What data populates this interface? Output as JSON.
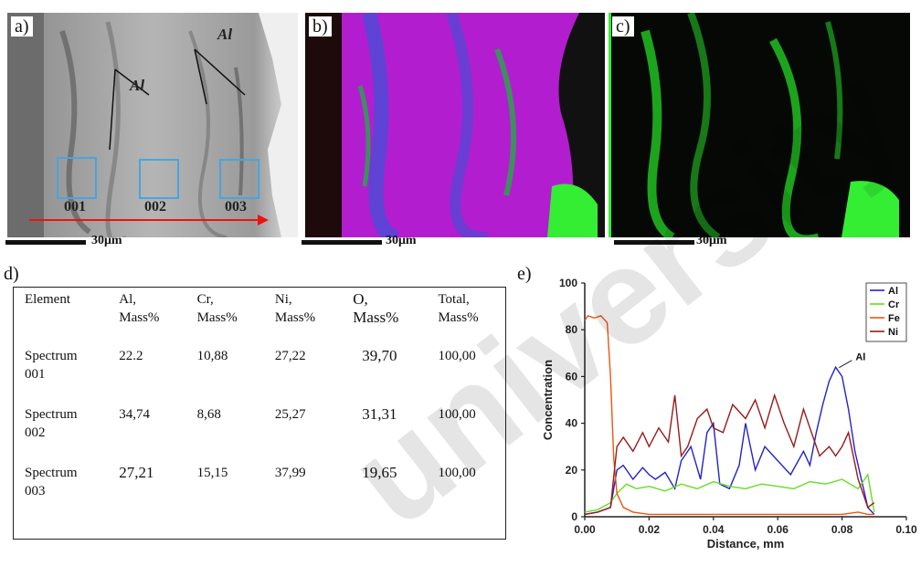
{
  "panels": {
    "a": {
      "label": "a)",
      "al_label_1": "Al",
      "al_label_2": "Al",
      "regions": [
        "001",
        "002",
        "003"
      ],
      "scale": "30μm"
    },
    "b": {
      "label": "b)",
      "scale": "30μm"
    },
    "c": {
      "label": "c)",
      "scale": "30μm"
    },
    "d": {
      "label": "d)"
    },
    "e": {
      "label": "e)"
    }
  },
  "table": {
    "headers": [
      [
        "Element"
      ],
      [
        "Al,",
        "Mass%"
      ],
      [
        "Cr,",
        "Mass%"
      ],
      [
        "Ni,",
        "Mass%"
      ],
      [
        "O,",
        "Mass%"
      ],
      [
        "Total,",
        "Mass%"
      ]
    ],
    "rows": [
      {
        "name": [
          "Spectrum",
          "001"
        ],
        "cells": [
          "22.2",
          "10,88",
          "27,22",
          "39,70",
          "100,00"
        ]
      },
      {
        "name": [
          "Spectrum",
          "002"
        ],
        "cells": [
          "34,74",
          "8,68",
          "25,27",
          "31,31",
          "100,00"
        ]
      },
      {
        "name": [
          "Spectrum",
          "003"
        ],
        "cells": [
          "27,21",
          "15,15",
          "37,99",
          "19,65",
          "100,00"
        ]
      }
    ]
  },
  "watermark": "university",
  "colors": {
    "Al": "#2222cc",
    "Cr": "#66dd22",
    "Fe": "#ee5511",
    "Ni": "#991a1a",
    "scan_arrow": "#ee1111",
    "region_box": "#4aa3df"
  },
  "chart_data": {
    "type": "line",
    "xlabel": "Distance, mm",
    "ylabel": "Concentration",
    "xlim": [
      0,
      0.1
    ],
    "ylim": [
      0,
      100
    ],
    "xticks": [
      "0.00",
      "0.02",
      "0.04",
      "0.06",
      "0.08",
      "0.10"
    ],
    "yticks": [
      "0",
      "20",
      "40",
      "60",
      "80",
      "100"
    ],
    "annotation": "Al",
    "legend_position": "top-right",
    "series": [
      {
        "name": "Al",
        "color": "#2222cc",
        "x": [
          0,
          0.004,
          0.008,
          0.01,
          0.012,
          0.015,
          0.018,
          0.02,
          0.022,
          0.025,
          0.028,
          0.03,
          0.033,
          0.036,
          0.038,
          0.04,
          0.042,
          0.045,
          0.048,
          0.05,
          0.053,
          0.056,
          0.06,
          0.064,
          0.068,
          0.07,
          0.072,
          0.074,
          0.076,
          0.078,
          0.08,
          0.082,
          0.084,
          0.086,
          0.088,
          0.09
        ],
        "y": [
          1,
          2,
          4,
          20,
          22,
          16,
          21,
          18,
          16,
          19,
          12,
          24,
          30,
          16,
          36,
          40,
          14,
          12,
          22,
          40,
          20,
          30,
          24,
          18,
          28,
          22,
          36,
          48,
          58,
          64,
          60,
          46,
          28,
          16,
          4,
          1
        ]
      },
      {
        "name": "Cr",
        "color": "#66dd22",
        "x": [
          0,
          0.004,
          0.008,
          0.01,
          0.013,
          0.016,
          0.02,
          0.025,
          0.03,
          0.035,
          0.04,
          0.045,
          0.05,
          0.055,
          0.06,
          0.065,
          0.07,
          0.075,
          0.08,
          0.085,
          0.088,
          0.09
        ],
        "y": [
          2,
          3,
          6,
          10,
          14,
          12,
          13,
          11,
          14,
          12,
          15,
          13,
          12,
          14,
          13,
          12,
          15,
          14,
          16,
          12,
          18,
          2
        ]
      },
      {
        "name": "Fe",
        "color": "#ee5511",
        "x": [
          0,
          0.001,
          0.003,
          0.005,
          0.007,
          0.008,
          0.009,
          0.01,
          0.012,
          0.015,
          0.02,
          0.03,
          0.04,
          0.05,
          0.06,
          0.07,
          0.08,
          0.085,
          0.088,
          0.09
        ],
        "y": [
          84,
          86,
          85,
          86,
          83,
          60,
          25,
          10,
          4,
          2,
          1,
          1,
          1,
          1,
          1,
          1,
          1,
          2,
          1,
          1
        ]
      },
      {
        "name": "Ni",
        "color": "#991a1a",
        "x": [
          0,
          0.004,
          0.008,
          0.01,
          0.012,
          0.015,
          0.018,
          0.02,
          0.023,
          0.026,
          0.028,
          0.03,
          0.032,
          0.035,
          0.038,
          0.04,
          0.043,
          0.046,
          0.05,
          0.053,
          0.056,
          0.059,
          0.062,
          0.065,
          0.068,
          0.07,
          0.073,
          0.076,
          0.078,
          0.08,
          0.082,
          0.085,
          0.088,
          0.09
        ],
        "y": [
          1,
          2,
          4,
          30,
          34,
          28,
          36,
          30,
          38,
          32,
          52,
          26,
          30,
          42,
          46,
          38,
          36,
          48,
          42,
          50,
          38,
          52,
          40,
          30,
          46,
          38,
          26,
          30,
          26,
          30,
          36,
          16,
          4,
          6
        ]
      }
    ]
  }
}
